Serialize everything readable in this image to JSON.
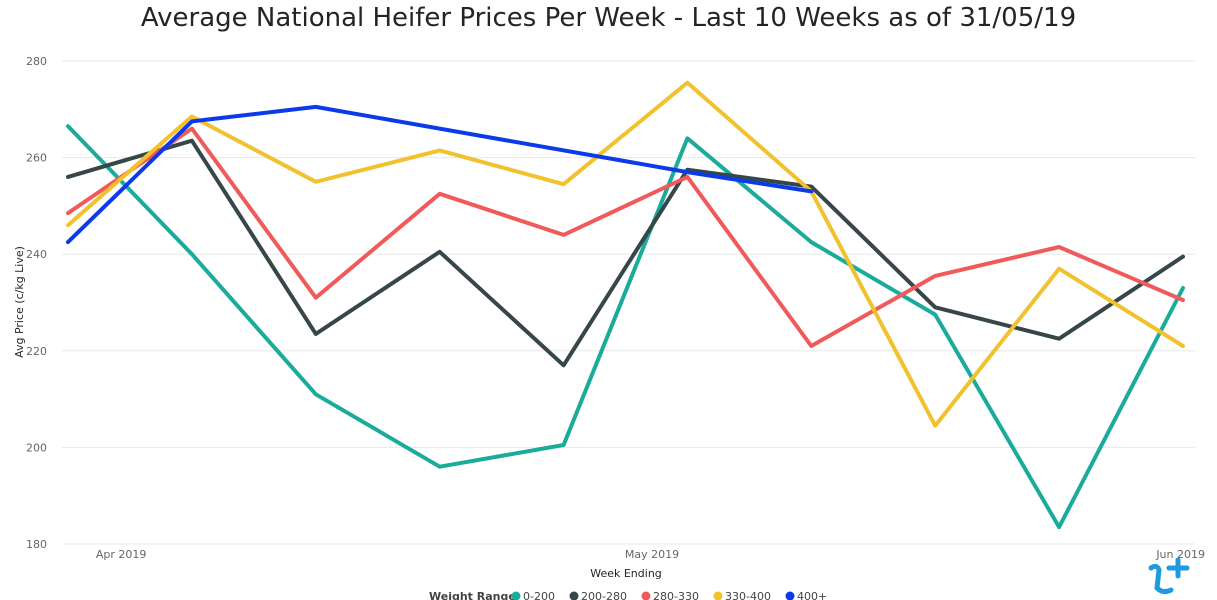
{
  "chart_data": {
    "type": "line",
    "title": "Average National Heifer Prices Per Week - Last 10 Weeks as of 31/05/19",
    "xlabel": "Week Ending",
    "ylabel": "Avg Price (c/kg Live)",
    "ylim": [
      180,
      280
    ],
    "yticks": [
      180,
      200,
      220,
      240,
      260,
      280
    ],
    "x_tick_labels": [
      "Apr 2019",
      "May 2019",
      "Jun 2019"
    ],
    "grid": true,
    "legend_title": "Weight Range",
    "legend_position": "bottom",
    "x": [
      "2019-03-29",
      "2019-04-05",
      "2019-04-12",
      "2019-04-19",
      "2019-04-26",
      "2019-05-03",
      "2019-05-10",
      "2019-05-17",
      "2019-05-24",
      "2019-05-31"
    ],
    "series": [
      {
        "name": "0-200",
        "color": "#1AAB9B",
        "values": [
          266.5,
          240.0,
          211.0,
          196.0,
          200.5,
          264.0,
          242.5,
          227.5,
          183.5,
          233.0
        ]
      },
      {
        "name": "200-280",
        "color": "#374649",
        "values": [
          256.0,
          263.5,
          223.5,
          240.5,
          217.0,
          257.5,
          254.0,
          229.0,
          222.5,
          239.5
        ]
      },
      {
        "name": "280-330",
        "color": "#F05A5A",
        "values": [
          248.5,
          266.0,
          231.0,
          252.5,
          244.0,
          256.0,
          221.0,
          235.5,
          241.5,
          230.5
        ]
      },
      {
        "name": "330-400",
        "color": "#F2C12E",
        "values": [
          246.0,
          268.5,
          255.0,
          261.5,
          254.5,
          275.5,
          253.0,
          204.5,
          237.0,
          221.0
        ]
      },
      {
        "name": "400+",
        "color": "#0B3AE8",
        "values": [
          242.5,
          267.5,
          270.5,
          null,
          null,
          257.0,
          253.0,
          null,
          null,
          null
        ]
      }
    ]
  },
  "logo": {
    "name": "brand-logo",
    "color": "#1E9BE0"
  }
}
